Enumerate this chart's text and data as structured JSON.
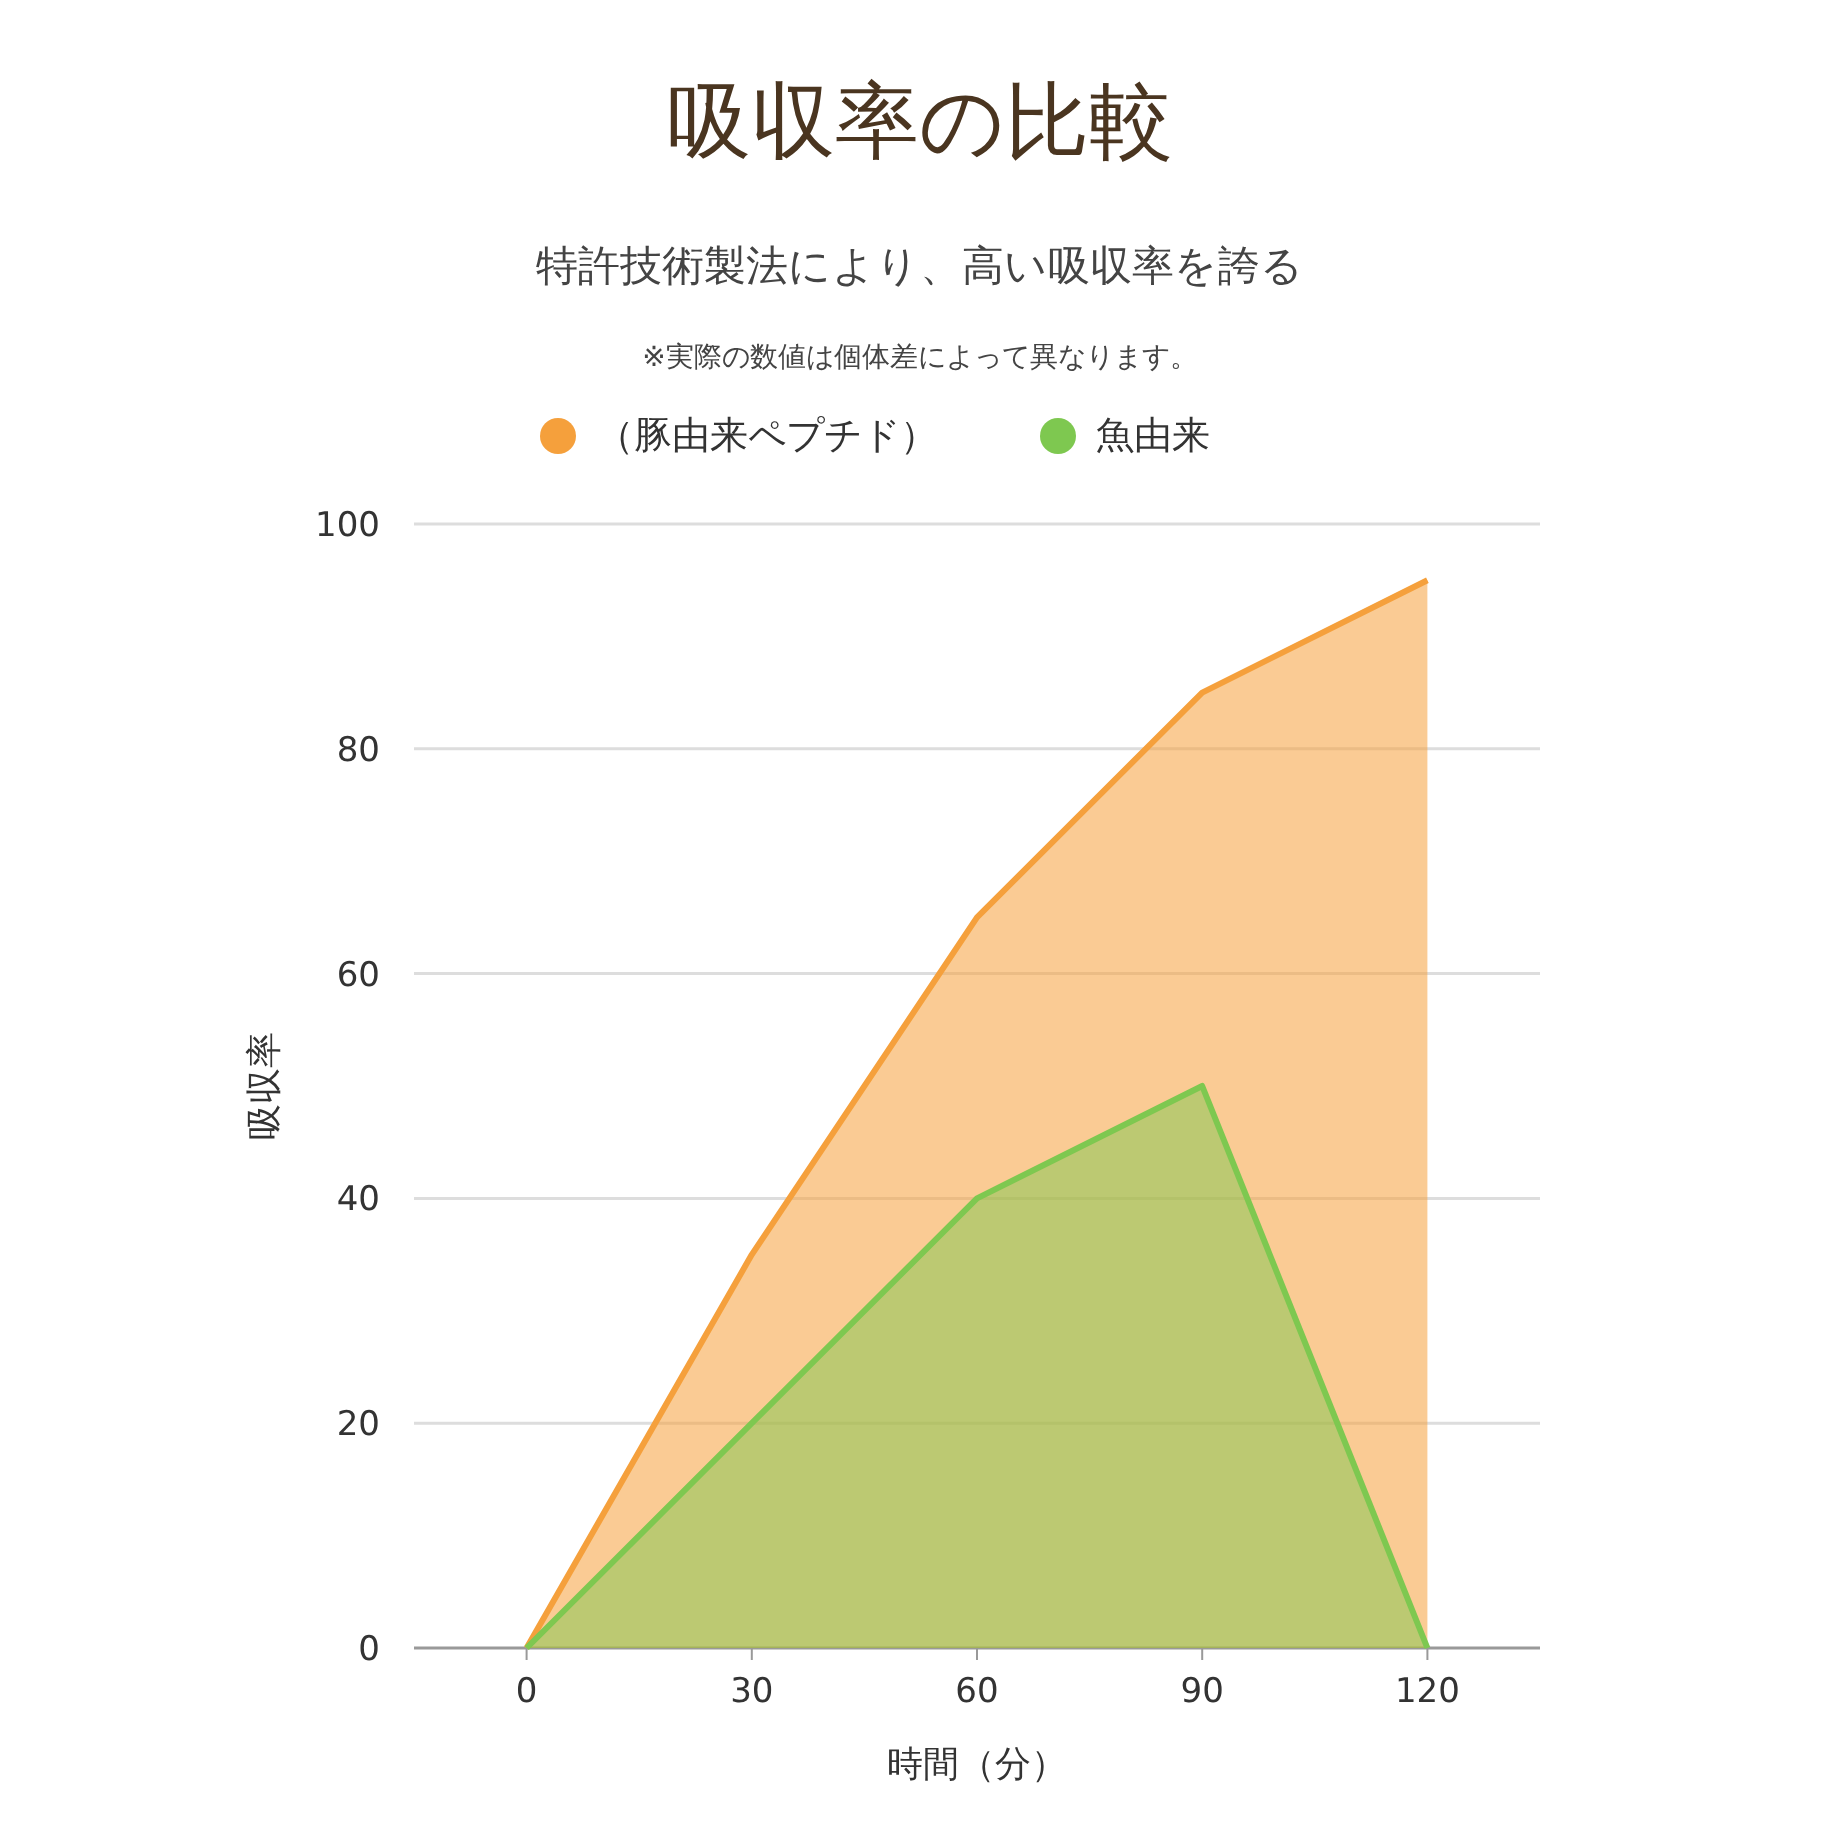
{
  "chart_data": {
    "type": "area",
    "title": "吸収率の比較",
    "subtitle": "特許技術製法により、高い吸収率を誇る",
    "annotations": [
      "※実際の数値は個体差によって異なります。"
    ],
    "xlabel": "時間（分）",
    "ylabel": "吸収率",
    "x": [
      0,
      30,
      60,
      90,
      120
    ],
    "series": [
      {
        "name": "（豚由来ペプチド）",
        "color": "#f5a03c",
        "values": [
          0,
          35,
          65,
          85,
          95
        ]
      },
      {
        "name": "魚由来",
        "color": "#7ec850",
        "values": [
          0,
          20,
          40,
          50,
          0
        ]
      }
    ],
    "xlim": [
      -15,
      135
    ],
    "xticks": [
      0,
      30,
      60,
      90,
      120
    ],
    "ylim": [
      0,
      100
    ],
    "yticks": [
      0,
      20,
      40,
      60,
      80,
      100
    ],
    "grid": "y",
    "legend": "top"
  }
}
